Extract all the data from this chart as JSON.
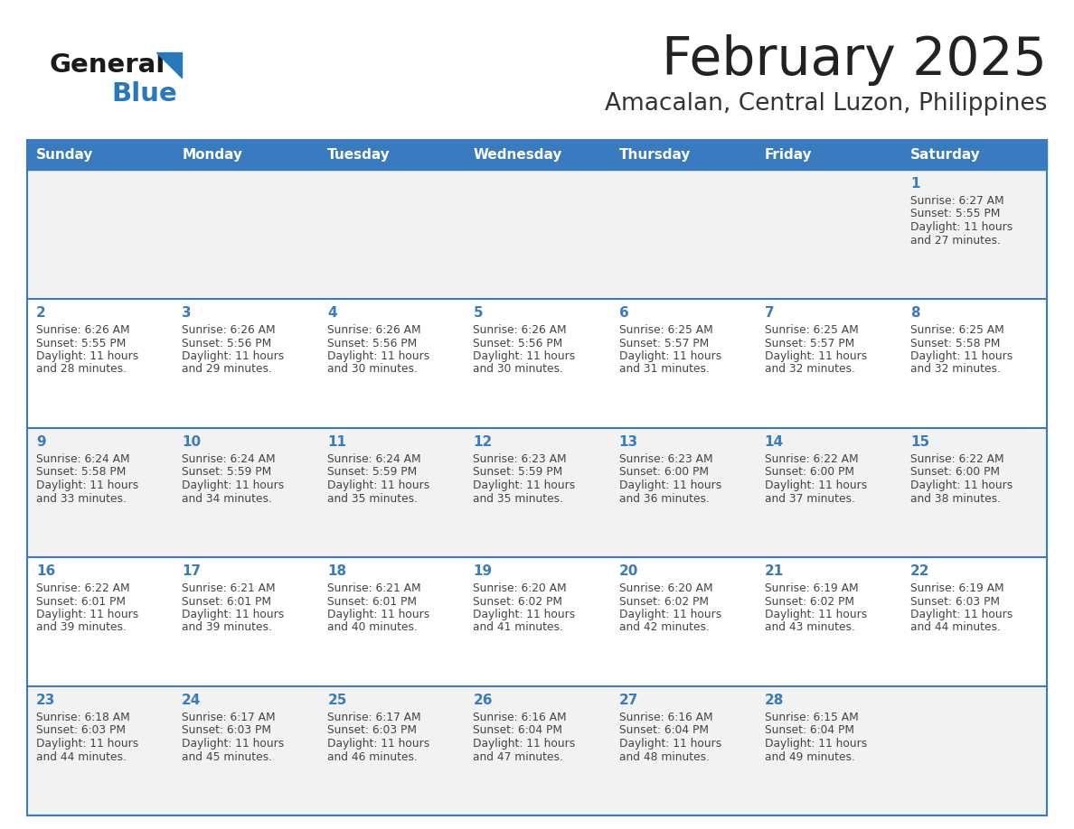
{
  "title": "February 2025",
  "subtitle": "Amacalan, Central Luzon, Philippines",
  "days_of_week": [
    "Sunday",
    "Monday",
    "Tuesday",
    "Wednesday",
    "Thursday",
    "Friday",
    "Saturday"
  ],
  "header_bg_color": "#3A7BBF",
  "header_text_color": "#FFFFFF",
  "cell_bg_row0": "#F2F2F2",
  "cell_bg_row1": "#FFFFFF",
  "cell_bg_row2": "#F2F2F2",
  "cell_bg_row3": "#FFFFFF",
  "cell_bg_row4": "#F2F2F2",
  "day_number_color": "#3A7BBF",
  "info_text_color": "#444444",
  "border_color": "#3A7BBF",
  "title_color": "#222222",
  "subtitle_color": "#333333",
  "logo_general_color": "#1a1a1a",
  "logo_blue_color": "#2878BE",
  "calendar_data": [
    [
      null,
      null,
      null,
      null,
      null,
      null,
      1
    ],
    [
      2,
      3,
      4,
      5,
      6,
      7,
      8
    ],
    [
      9,
      10,
      11,
      12,
      13,
      14,
      15
    ],
    [
      16,
      17,
      18,
      19,
      20,
      21,
      22
    ],
    [
      23,
      24,
      25,
      26,
      27,
      28,
      null
    ]
  ],
  "sunrise_data": {
    "1": "6:27 AM",
    "2": "6:26 AM",
    "3": "6:26 AM",
    "4": "6:26 AM",
    "5": "6:26 AM",
    "6": "6:25 AM",
    "7": "6:25 AM",
    "8": "6:25 AM",
    "9": "6:24 AM",
    "10": "6:24 AM",
    "11": "6:24 AM",
    "12": "6:23 AM",
    "13": "6:23 AM",
    "14": "6:22 AM",
    "15": "6:22 AM",
    "16": "6:22 AM",
    "17": "6:21 AM",
    "18": "6:21 AM",
    "19": "6:20 AM",
    "20": "6:20 AM",
    "21": "6:19 AM",
    "22": "6:19 AM",
    "23": "6:18 AM",
    "24": "6:17 AM",
    "25": "6:17 AM",
    "26": "6:16 AM",
    "27": "6:16 AM",
    "28": "6:15 AM"
  },
  "sunset_data": {
    "1": "5:55 PM",
    "2": "5:55 PM",
    "3": "5:56 PM",
    "4": "5:56 PM",
    "5": "5:56 PM",
    "6": "5:57 PM",
    "7": "5:57 PM",
    "8": "5:58 PM",
    "9": "5:58 PM",
    "10": "5:59 PM",
    "11": "5:59 PM",
    "12": "5:59 PM",
    "13": "6:00 PM",
    "14": "6:00 PM",
    "15": "6:00 PM",
    "16": "6:01 PM",
    "17": "6:01 PM",
    "18": "6:01 PM",
    "19": "6:02 PM",
    "20": "6:02 PM",
    "21": "6:02 PM",
    "22": "6:03 PM",
    "23": "6:03 PM",
    "24": "6:03 PM",
    "25": "6:03 PM",
    "26": "6:04 PM",
    "27": "6:04 PM",
    "28": "6:04 PM"
  },
  "daylight_minutes": {
    "1": 27,
    "2": 28,
    "3": 29,
    "4": 30,
    "5": 30,
    "6": 31,
    "7": 32,
    "8": 32,
    "9": 33,
    "10": 34,
    "11": 35,
    "12": 35,
    "13": 36,
    "14": 37,
    "15": 38,
    "16": 39,
    "17": 39,
    "18": 40,
    "19": 41,
    "20": 42,
    "21": 43,
    "22": 44,
    "23": 44,
    "24": 45,
    "25": 46,
    "26": 47,
    "27": 48,
    "28": 49
  }
}
